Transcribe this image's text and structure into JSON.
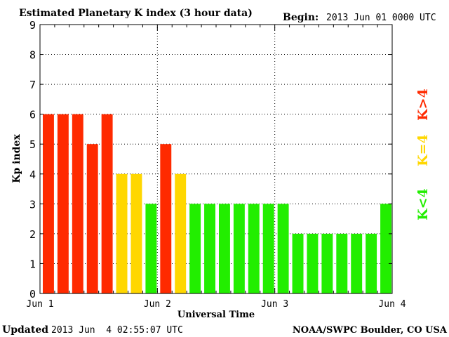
{
  "header": {
    "title": "Estimated Planetary K index (3 hour data)",
    "begin_label": "Begin:",
    "begin_value": "2013 Jun 01 0000 UTC"
  },
  "footer": {
    "updated_label": "Updated",
    "updated_value": "2013 Jun  4 02:55:07 UTC",
    "source": "NOAA/SWPC Boulder, CO USA"
  },
  "legend": {
    "above": "K>4",
    "equal": "K=4",
    "below": "K<4"
  },
  "colors": {
    "above": "#ff2a00",
    "equal": "#ffd700",
    "below": "#22ee00",
    "gridline": "#000000",
    "axis": "#000000"
  },
  "chart_data": {
    "type": "bar",
    "ylabel": "Kp index",
    "xlabel": "Universal Time",
    "ylim": [
      0,
      9
    ],
    "yticks": [
      "0",
      "1",
      "2",
      "3",
      "4",
      "5",
      "6",
      "7",
      "8",
      "9"
    ],
    "x_tick_labels": [
      "Jun 1",
      "Jun 2",
      "Jun 3",
      "Jun 4"
    ],
    "interval_hours": 3,
    "grid": true,
    "series": [
      {
        "values": [
          6,
          6,
          6,
          5,
          6,
          4,
          4,
          3,
          5,
          4,
          3,
          3,
          3,
          3,
          3,
          3,
          3,
          2,
          2,
          2,
          2,
          2,
          2,
          3
        ]
      }
    ]
  }
}
